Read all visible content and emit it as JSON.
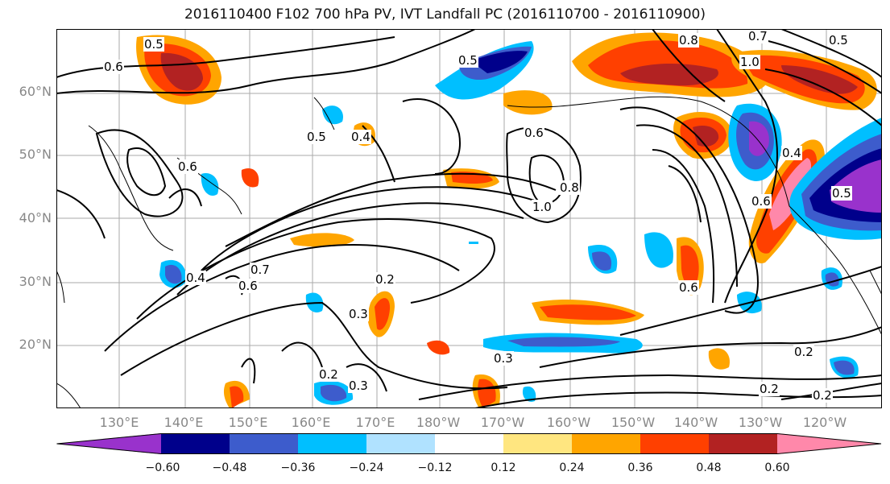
{
  "title": "2016110400 F102 700 hPa PV, IVT Landfall PC (2016110700 - 2016110900)",
  "lat_labels": [
    "60°N",
    "50°N",
    "40°N",
    "30°N",
    "20°N"
  ],
  "lon_labels": [
    "130°E",
    "140°E",
    "150°E",
    "160°E",
    "170°E",
    "180°W",
    "170°W",
    "160°W",
    "150°W",
    "140°W",
    "130°W",
    "120°W"
  ],
  "contour_labels": [
    "0.5",
    "0.6",
    "0.5",
    "0.8",
    "0.7",
    "1.0",
    "0.5",
    "0.6",
    "0.4",
    "0.6",
    "0.5",
    "1.0",
    "0.8",
    "0.6",
    "0.4",
    "0.6",
    "0.5",
    "0.4",
    "0.7",
    "0.6",
    "0.2",
    "0.3",
    "0.2",
    "0.3",
    "0.3",
    "0.2",
    "0.2",
    "0.2"
  ],
  "colorbar": {
    "ticks": [
      "−0.60",
      "−0.48",
      "−0.36",
      "−0.24",
      "−0.12",
      "0.12",
      "0.24",
      "0.36",
      "0.48",
      "0.60"
    ],
    "colors": [
      "#9932cc",
      "#00008b",
      "#3d5ccc",
      "#00bfff",
      "#b0e2ff",
      "#ffffff",
      "#ffe680",
      "#ffa500",
      "#ff4000",
      "#b22222",
      "#ff88aa",
      "#ff88aa"
    ]
  }
}
